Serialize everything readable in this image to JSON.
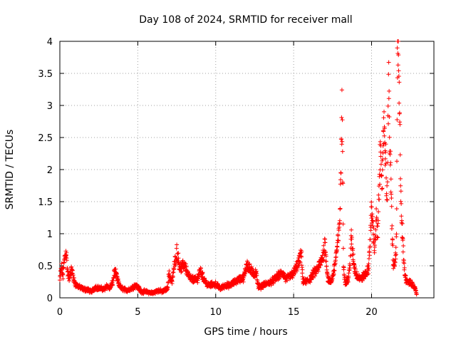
{
  "chart_data": {
    "type": "scatter",
    "title": "Day 108 of 2024, SRMTID for receiver mall",
    "xlabel": "GPS time / hours",
    "ylabel": "SRMTID / TECUs",
    "xlim": [
      0,
      24
    ],
    "ylim": [
      0,
      4
    ],
    "grid": true,
    "marker": "+",
    "color": "#ff0000",
    "x_ticks": [
      0,
      5,
      10,
      15,
      20
    ],
    "x_tick_labels": [
      "0",
      "5",
      "10",
      "15",
      "20"
    ],
    "y_ticks": [
      0,
      0.5,
      1,
      1.5,
      2,
      2.5,
      3,
      3.5,
      4
    ],
    "y_tick_labels": [
      "0",
      "0.5",
      "1",
      "1.5",
      "2",
      "2.5",
      "3",
      "3.5",
      "4"
    ],
    "series": [
      {
        "name": "SRMTID",
        "profile": [
          [
            0.0,
            0.28
          ],
          [
            0.1,
            0.5
          ],
          [
            0.2,
            0.35
          ],
          [
            0.3,
            0.62
          ],
          [
            0.4,
            0.75
          ],
          [
            0.5,
            0.4
          ],
          [
            0.6,
            0.3
          ],
          [
            0.7,
            0.45
          ],
          [
            0.8,
            0.42
          ],
          [
            0.9,
            0.28
          ],
          [
            1.0,
            0.22
          ],
          [
            1.2,
            0.18
          ],
          [
            1.5,
            0.14
          ],
          [
            1.8,
            0.13
          ],
          [
            2.0,
            0.1
          ],
          [
            2.3,
            0.17
          ],
          [
            2.6,
            0.15
          ],
          [
            2.9,
            0.14
          ],
          [
            3.0,
            0.2
          ],
          [
            3.2,
            0.15
          ],
          [
            3.4,
            0.25
          ],
          [
            3.5,
            0.42
          ],
          [
            3.6,
            0.38
          ],
          [
            3.8,
            0.2
          ],
          [
            4.0,
            0.15
          ],
          [
            4.3,
            0.12
          ],
          [
            4.6,
            0.15
          ],
          [
            4.8,
            0.2
          ],
          [
            5.0,
            0.18
          ],
          [
            5.2,
            0.1
          ],
          [
            5.5,
            0.1
          ],
          [
            5.8,
            0.08
          ],
          [
            6.0,
            0.08
          ],
          [
            6.3,
            0.12
          ],
          [
            6.6,
            0.1
          ],
          [
            6.9,
            0.15
          ],
          [
            7.0,
            0.38
          ],
          [
            7.2,
            0.25
          ],
          [
            7.3,
            0.45
          ],
          [
            7.4,
            0.6
          ],
          [
            7.5,
            0.75
          ],
          [
            7.6,
            0.62
          ],
          [
            7.7,
            0.5
          ],
          [
            7.8,
            0.48
          ],
          [
            8.0,
            0.55
          ],
          [
            8.2,
            0.38
          ],
          [
            8.4,
            0.3
          ],
          [
            8.6,
            0.3
          ],
          [
            8.8,
            0.28
          ],
          [
            9.0,
            0.45
          ],
          [
            9.2,
            0.32
          ],
          [
            9.5,
            0.2
          ],
          [
            10.0,
            0.22
          ],
          [
            10.3,
            0.15
          ],
          [
            10.6,
            0.2
          ],
          [
            10.9,
            0.2
          ],
          [
            11.2,
            0.25
          ],
          [
            11.5,
            0.3
          ],
          [
            11.8,
            0.32
          ],
          [
            12.0,
            0.55
          ],
          [
            12.2,
            0.45
          ],
          [
            12.4,
            0.4
          ],
          [
            12.6,
            0.4
          ],
          [
            12.7,
            0.2
          ],
          [
            12.9,
            0.18
          ],
          [
            13.2,
            0.22
          ],
          [
            13.5,
            0.25
          ],
          [
            13.8,
            0.3
          ],
          [
            14.0,
            0.35
          ],
          [
            14.3,
            0.4
          ],
          [
            14.5,
            0.3
          ],
          [
            14.8,
            0.35
          ],
          [
            15.0,
            0.4
          ],
          [
            15.3,
            0.55
          ],
          [
            15.5,
            0.7
          ],
          [
            15.6,
            0.25
          ],
          [
            16.0,
            0.28
          ],
          [
            16.3,
            0.4
          ],
          [
            16.5,
            0.45
          ],
          [
            16.7,
            0.55
          ],
          [
            16.9,
            0.7
          ],
          [
            17.0,
            0.87
          ],
          [
            17.2,
            0.3
          ],
          [
            17.4,
            0.25
          ],
          [
            17.6,
            0.45
          ],
          [
            17.7,
            0.65
          ],
          [
            17.8,
            0.82
          ],
          [
            17.9,
            1.0
          ],
          [
            18.0,
            1.6
          ],
          [
            18.05,
            2.5
          ],
          [
            18.1,
            3.0
          ],
          [
            18.15,
            2.0
          ],
          [
            18.2,
            0.55
          ],
          [
            18.3,
            0.25
          ],
          [
            18.5,
            0.3
          ],
          [
            18.6,
            0.5
          ],
          [
            18.7,
            0.96
          ],
          [
            18.8,
            0.7
          ],
          [
            18.9,
            0.5
          ],
          [
            19.0,
            0.38
          ],
          [
            19.3,
            0.3
          ],
          [
            19.6,
            0.38
          ],
          [
            19.8,
            0.45
          ],
          [
            20.0,
            1.4
          ],
          [
            20.2,
            0.8
          ],
          [
            20.3,
            1.25
          ],
          [
            20.4,
            1.0
          ],
          [
            20.5,
            1.9
          ],
          [
            20.6,
            2.5
          ],
          [
            20.7,
            1.8
          ],
          [
            20.8,
            2.9
          ],
          [
            20.9,
            2.3
          ],
          [
            21.0,
            1.5
          ],
          [
            21.05,
            2.8
          ],
          [
            21.1,
            3.3
          ],
          [
            21.2,
            2.2
          ],
          [
            21.3,
            1.2
          ],
          [
            21.4,
            0.5
          ],
          [
            21.5,
            0.55
          ],
          [
            21.6,
            0.9
          ],
          [
            21.65,
            3.5
          ],
          [
            21.7,
            4.0
          ],
          [
            21.8,
            2.8
          ],
          [
            21.9,
            1.5
          ],
          [
            22.0,
            0.9
          ],
          [
            22.1,
            0.45
          ],
          [
            22.2,
            0.3
          ],
          [
            22.4,
            0.25
          ],
          [
            22.6,
            0.22
          ],
          [
            22.8,
            0.15
          ],
          [
            22.9,
            0.05
          ]
        ]
      }
    ]
  }
}
